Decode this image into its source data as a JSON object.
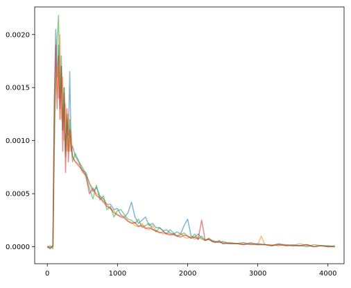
{
  "chart_data": {
    "type": "line",
    "title": "",
    "xlabel": "",
    "ylabel": "",
    "xlim": [
      -180,
      4230
    ],
    "ylim": [
      -0.00016,
      0.00226
    ],
    "grid": false,
    "legend": "none",
    "x_ticks": [
      {
        "value": 0,
        "label": "0"
      },
      {
        "value": 1000,
        "label": "1000"
      },
      {
        "value": 2000,
        "label": "2000"
      },
      {
        "value": 3000,
        "label": "3000"
      },
      {
        "value": 4000,
        "label": "4000"
      }
    ],
    "y_ticks": [
      {
        "value": 0.0,
        "label": "0.0000"
      },
      {
        "value": 0.0005,
        "label": "0.0005"
      },
      {
        "value": 0.001,
        "label": "0.0010"
      },
      {
        "value": 0.0015,
        "label": "0.0015"
      },
      {
        "value": 0.002,
        "label": "0.0020"
      }
    ],
    "series": [
      {
        "color": "#1f77b4",
        "x": [
          0,
          40,
          80,
          100,
          120,
          140,
          160,
          180,
          200,
          220,
          240,
          260,
          280,
          300,
          320,
          340,
          360,
          400,
          450,
          500,
          550,
          600,
          650,
          700,
          750,
          800,
          850,
          900,
          950,
          1000,
          1050,
          1100,
          1150,
          1200,
          1250,
          1300,
          1350,
          1400,
          1450,
          1500,
          1550,
          1600,
          1650,
          1700,
          1750,
          1800,
          1850,
          1900,
          1950,
          2000,
          2050,
          2100,
          2150,
          2200,
          2250,
          2300,
          2350,
          2400,
          2450,
          2500,
          2600,
          2700,
          2800,
          2900,
          3000,
          3100,
          3200,
          3300,
          3400,
          3500,
          3600,
          3700,
          3800,
          3900,
          4000,
          4100
        ],
        "y": [
          0.0,
          -2e-05,
          1e-05,
          0.0013,
          0.00205,
          0.0016,
          0.0019,
          0.0013,
          0.0017,
          0.0011,
          0.0015,
          0.0009,
          0.0012,
          0.00105,
          0.00165,
          0.0009,
          0.00095,
          0.00085,
          0.0008,
          0.00072,
          0.0007,
          0.0006,
          0.00052,
          0.00056,
          0.00048,
          0.00045,
          0.0004,
          0.0004,
          0.00035,
          0.00036,
          0.0003,
          0.00028,
          0.00032,
          0.00042,
          0.00028,
          0.00022,
          0.00025,
          0.00028,
          0.0002,
          0.00022,
          0.00018,
          0.00018,
          0.00015,
          0.00016,
          0.00013,
          0.00012,
          0.00014,
          0.00012,
          0.0002,
          0.00026,
          0.0001,
          9e-05,
          0.00012,
          8e-05,
          6e-05,
          8e-05,
          6e-05,
          5e-05,
          4e-05,
          5e-05,
          3e-05,
          3e-05,
          4e-05,
          2e-05,
          3e-05,
          2e-05,
          1e-05,
          2e-05,
          2e-05,
          1e-05,
          1e-05,
          2e-05,
          0.0,
          1e-05,
          1e-05,
          0.0
        ]
      },
      {
        "color": "#ff7f0e",
        "x": [
          0,
          40,
          80,
          100,
          120,
          140,
          160,
          180,
          200,
          220,
          240,
          260,
          280,
          300,
          320,
          340,
          360,
          400,
          450,
          500,
          550,
          600,
          650,
          700,
          750,
          800,
          850,
          900,
          950,
          1000,
          1050,
          1100,
          1150,
          1200,
          1250,
          1300,
          1350,
          1400,
          1450,
          1500,
          1550,
          1600,
          1650,
          1700,
          1750,
          1800,
          1850,
          1900,
          1950,
          2000,
          2050,
          2100,
          2150,
          2200,
          2250,
          2300,
          2350,
          2400,
          2450,
          2500,
          2600,
          2700,
          2800,
          2900,
          3000,
          3050,
          3100,
          3200,
          3300,
          3400,
          3500,
          3600,
          3700,
          3800,
          3900,
          4000,
          4100
        ],
        "y": [
          1e-05,
          -1e-05,
          0.0,
          0.0012,
          0.0015,
          0.0017,
          0.0014,
          0.002,
          0.0012,
          0.0016,
          0.001,
          0.00135,
          0.0009,
          0.00125,
          0.0009,
          0.0011,
          0.00085,
          0.0008,
          0.00078,
          0.0007,
          0.00068,
          0.0006,
          0.00055,
          0.0005,
          0.00047,
          0.00043,
          0.0004,
          0.00036,
          0.00034,
          0.0003,
          0.00029,
          0.00028,
          0.00024,
          0.00023,
          0.0002,
          0.00019,
          0.00022,
          0.00018,
          0.00016,
          0.0002,
          0.00015,
          0.00014,
          0.00012,
          0.00013,
          0.00012,
          0.00011,
          0.0001,
          0.00013,
          9e-05,
          8e-05,
          0.0001,
          7e-05,
          9e-05,
          7e-05,
          6e-05,
          8e-05,
          5e-05,
          5e-05,
          4e-05,
          4e-05,
          3e-05,
          3e-05,
          3e-05,
          2e-05,
          2e-05,
          0.0001,
          2e-05,
          2e-05,
          1e-05,
          2e-05,
          1e-05,
          3e-05,
          1e-05,
          0.0,
          1e-05,
          0.0,
          0.0
        ]
      },
      {
        "color": "#2ca02c",
        "x": [
          0,
          40,
          80,
          100,
          120,
          140,
          160,
          180,
          200,
          220,
          240,
          260,
          280,
          300,
          320,
          340,
          360,
          400,
          450,
          500,
          550,
          600,
          650,
          700,
          750,
          800,
          850,
          900,
          950,
          1000,
          1050,
          1100,
          1150,
          1200,
          1250,
          1300,
          1350,
          1400,
          1450,
          1500,
          1550,
          1600,
          1650,
          1700,
          1750,
          1800,
          1850,
          1900,
          1950,
          2000,
          2050,
          2100,
          2150,
          2200,
          2250,
          2300,
          2350,
          2400,
          2450,
          2500,
          2600,
          2700,
          2800,
          2900,
          3000,
          3100,
          3200,
          3300,
          3400,
          3500,
          3600,
          3700,
          3800,
          3900,
          4000,
          4100
        ],
        "y": [
          -1e-05,
          1e-05,
          -2e-05,
          0.0009,
          0.0016,
          0.00195,
          0.00218,
          0.0014,
          0.0018,
          0.0011,
          0.0015,
          0.00085,
          0.00125,
          0.0009,
          0.0012,
          0.00095,
          0.0008,
          0.00088,
          0.0008,
          0.00075,
          0.00068,
          0.00055,
          0.00045,
          0.00058,
          0.00044,
          0.00048,
          0.00035,
          0.00038,
          0.00028,
          0.00034,
          0.00035,
          0.0003,
          0.00026,
          0.00025,
          0.00022,
          0.00026,
          0.00018,
          0.0002,
          0.00022,
          0.00017,
          0.00014,
          0.00018,
          0.00015,
          0.00012,
          0.00016,
          0.00013,
          0.0001,
          0.00011,
          0.00013,
          0.0001,
          8e-05,
          0.00012,
          7e-05,
          0.0001,
          6e-05,
          7e-05,
          5e-05,
          4e-05,
          6e-05,
          3e-05,
          4e-05,
          3e-05,
          2e-05,
          4e-05,
          2e-05,
          2e-05,
          1e-05,
          3e-05,
          1e-05,
          2e-05,
          1e-05,
          0.0,
          2e-05,
          1e-05,
          0.0,
          1e-05
        ]
      },
      {
        "color": "#d62728",
        "x": [
          0,
          40,
          80,
          100,
          120,
          140,
          160,
          180,
          200,
          220,
          240,
          260,
          280,
          300,
          320,
          340,
          360,
          400,
          450,
          500,
          550,
          600,
          650,
          700,
          750,
          800,
          850,
          900,
          950,
          1000,
          1050,
          1100,
          1150,
          1200,
          1250,
          1300,
          1350,
          1400,
          1450,
          1500,
          1550,
          1600,
          1650,
          1700,
          1750,
          1800,
          1850,
          1900,
          1950,
          2000,
          2050,
          2100,
          2150,
          2200,
          2250,
          2300,
          2350,
          2400,
          2450,
          2500,
          2600,
          2700,
          2800,
          2900,
          3000,
          3100,
          3200,
          3300,
          3400,
          3500,
          3600,
          3700,
          3800,
          3900,
          4000,
          4100
        ],
        "y": [
          0.0,
          -1e-05,
          1e-05,
          0.0014,
          0.0019,
          0.0013,
          0.0018,
          0.0012,
          0.0017,
          0.0009,
          0.00145,
          0.0007,
          0.0013,
          0.0008,
          0.0011,
          0.00095,
          0.00085,
          0.0008,
          0.00076,
          0.00072,
          0.00066,
          0.0005,
          0.00055,
          0.00048,
          0.00046,
          0.00042,
          0.00038,
          0.00036,
          0.00032,
          0.0003,
          0.00028,
          0.00027,
          0.00024,
          0.00022,
          0.00023,
          0.00019,
          0.0002,
          0.00017,
          0.00018,
          0.00016,
          0.00015,
          0.00013,
          0.00014,
          0.00012,
          0.00011,
          0.00012,
          0.0001,
          9e-05,
          0.00011,
          0.0001,
          8e-05,
          9e-05,
          7e-05,
          0.00025,
          6e-05,
          7e-05,
          5e-05,
          4e-05,
          5e-05,
          3e-05,
          3e-05,
          3e-05,
          2e-05,
          3e-05,
          2e-05,
          2e-05,
          1e-05,
          2e-05,
          1e-05,
          1e-05,
          1e-05,
          2e-05,
          0.0,
          1e-05,
          0.0,
          0.0
        ]
      }
    ]
  }
}
